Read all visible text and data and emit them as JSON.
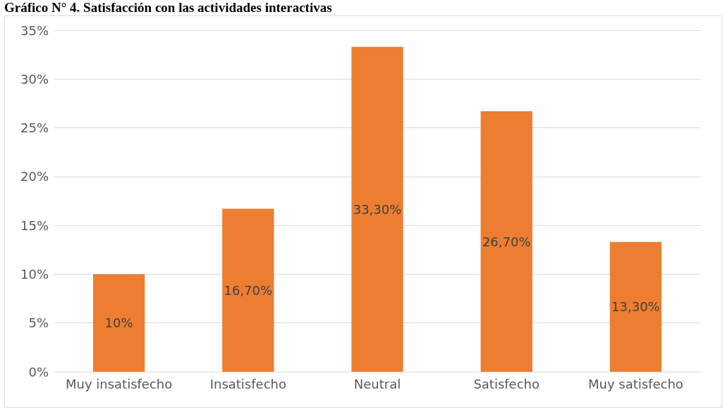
{
  "chart_data": {
    "type": "bar",
    "title": "Gráfico N° 4. Satisfacción con las actividades interactivas",
    "categories": [
      "Muy insatisfecho",
      "Insatisfecho",
      "Neutral",
      "Satisfecho",
      "Muy satisfecho"
    ],
    "values": [
      10,
      16.7,
      33.3,
      26.7,
      13.3
    ],
    "value_labels": [
      "10%",
      "16,70%",
      "33,30%",
      "26,70%",
      "13,30%"
    ],
    "color": "#ed7d31",
    "ylim": [
      0,
      35
    ],
    "yticks": [
      {
        "value": 0,
        "label": "0%"
      },
      {
        "value": 5,
        "label": "5%"
      },
      {
        "value": 10,
        "label": "10%"
      },
      {
        "value": 15,
        "label": "15%"
      },
      {
        "value": 20,
        "label": "20%"
      },
      {
        "value": 25,
        "label": "25%"
      },
      {
        "value": 30,
        "label": "30%"
      },
      {
        "value": 35,
        "label": "35%"
      }
    ],
    "grid": "y"
  }
}
